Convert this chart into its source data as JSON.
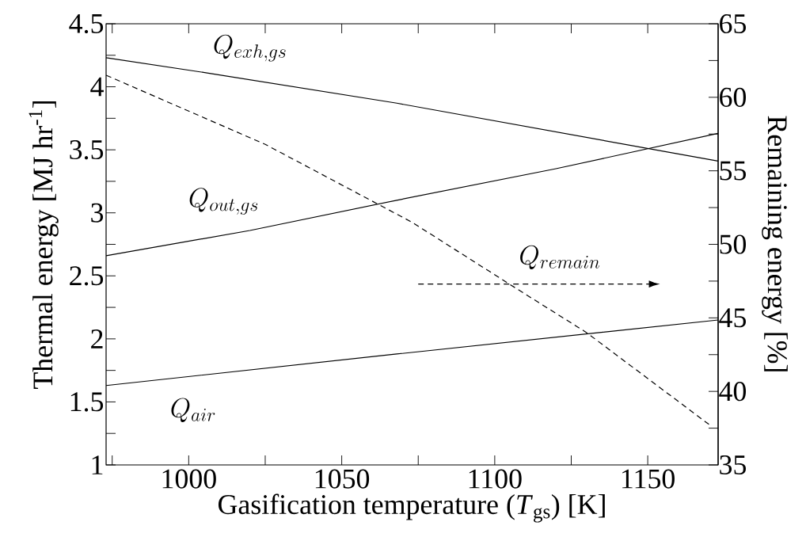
{
  "chart_data": {
    "type": "line",
    "xlabel": "Gasification temperature (*T*$_{gs}$) [K]",
    "ylabel": "Thermal energy [MJ hr$^{-1}$]",
    "y2label": "Remaining energy [%]",
    "xlim": [
      973,
      1173
    ],
    "xticks": [
      {
        "value": 975,
        "label": null
      },
      1000,
      {
        "value": 1025,
        "label": null
      },
      1050,
      {
        "value": 1075,
        "label": null
      },
      1100,
      {
        "value": 1125,
        "label": null
      },
      1150
    ],
    "ylim": [
      1,
      4.5
    ],
    "yticks": [
      1,
      {
        "value": 1.25,
        "label": null
      },
      1.5,
      {
        "value": 1.75,
        "label": null
      },
      2,
      {
        "value": 2.25,
        "label": null
      },
      2.5,
      {
        "value": 2.75,
        "label": null
      },
      3,
      {
        "value": 3.25,
        "label": null
      },
      3.5,
      {
        "value": 3.75,
        "label": null
      },
      4,
      {
        "value": 4.25,
        "label": null
      },
      4.5
    ],
    "y2lim": [
      35,
      65
    ],
    "y2ticks": [
      35,
      {
        "value": 37.5,
        "label": null
      },
      40,
      {
        "value": 42.5,
        "label": null
      },
      45,
      {
        "value": 47.5,
        "label": null
      },
      50,
      {
        "value": 52.5,
        "label": null
      },
      55,
      {
        "value": 57.5,
        "label": null
      },
      60,
      {
        "value": 62.5,
        "label": null
      },
      65
    ],
    "series": [
      {
        "name": "Q_{exh, gs}",
        "color": "#000000",
        "line_style": "solid",
        "x": [
          973,
          1006,
          1068,
          1173
        ],
        "values": [
          4.23,
          4.11,
          3.87,
          3.41
        ]
      },
      {
        "name": "Q_{out, gs}",
        "color": "#000000",
        "line_style": "solid",
        "x": [
          973,
          1020,
          1068,
          1120,
          1173
        ],
        "values": [
          2.66,
          2.86,
          3.1,
          3.35,
          3.63
        ]
      },
      {
        "name": "Q_{air}",
        "color": "#000000",
        "line_style": "solid",
        "x": [
          973,
          1068,
          1173
        ],
        "values": [
          1.63,
          1.88,
          2.15
        ]
      },
      {
        "name": "Q_{remain}",
        "color": "#000000",
        "line_style": "dashed",
        "axis": "y2",
        "x": [
          973,
          1025,
          1073,
          1104,
          1130,
          1171
        ],
        "values": [
          61.5,
          56.8,
          51.5,
          47.4,
          44.0,
          37.6
        ]
      }
    ]
  }
}
